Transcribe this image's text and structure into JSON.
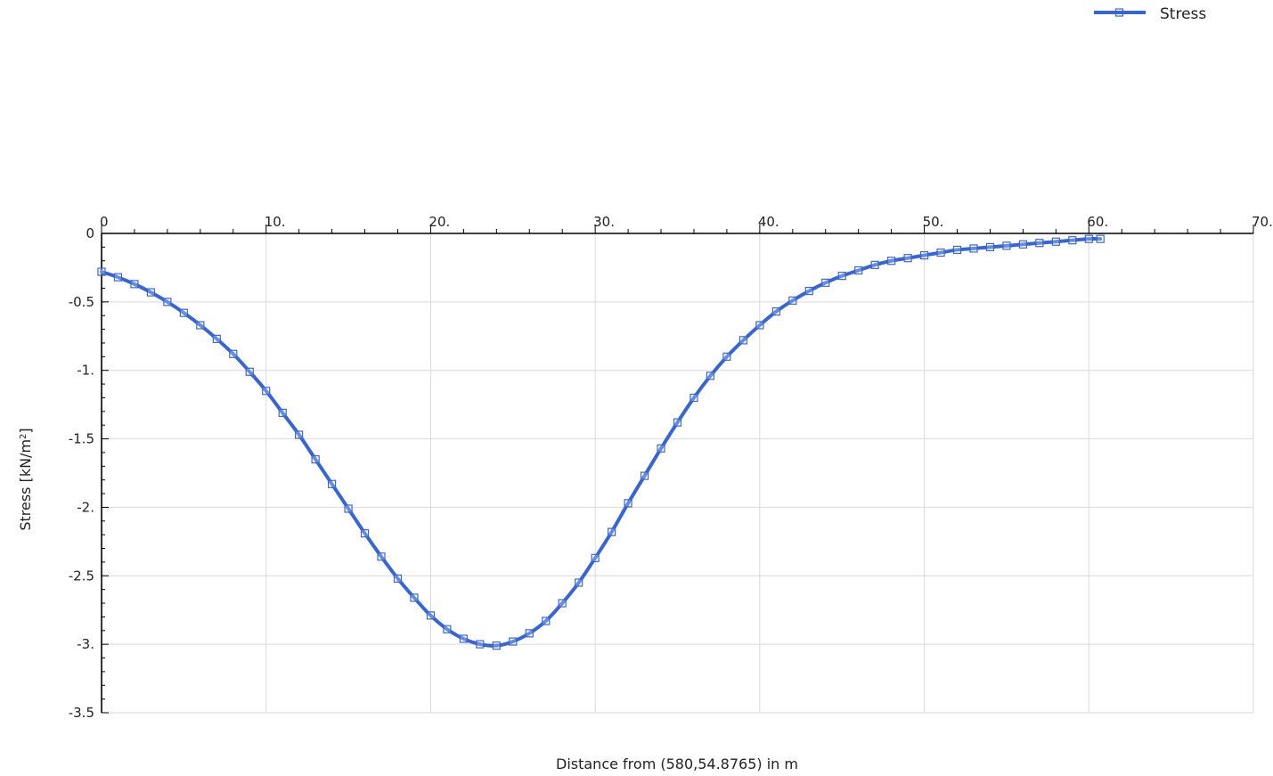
{
  "chart_data": {
    "type": "line",
    "xlabel": "Distance from (580,54.8765) in m",
    "ylabel_main": "Stress [kN/m",
    "ylabel_sup": "2",
    "ylabel_end": "]",
    "xlim": [
      0,
      70
    ],
    "ylim": [
      -3.5,
      0
    ],
    "x_ticks": [
      0,
      10,
      20,
      30,
      40,
      50,
      60,
      70
    ],
    "x_tick_labels": [
      "0",
      "10.",
      "20.",
      "30.",
      "40.",
      "50.",
      "60.",
      "70."
    ],
    "y_ticks": [
      0,
      -0.5,
      -1,
      -1.5,
      -2,
      -2.5,
      -3,
      -3.5
    ],
    "y_tick_labels": [
      "0",
      "-0.5",
      "-1.",
      "-1.5",
      "-2.",
      "-2.5",
      "-3.",
      "-3.5"
    ],
    "grid": true,
    "legend_position": "top-right",
    "series": [
      {
        "name": "Stress",
        "color": "#3a66cc",
        "marker": "square",
        "x": [
          0.0,
          1.0,
          2.0,
          3.0,
          4.0,
          5.0,
          6.0,
          7.0,
          8.0,
          9.0,
          10.0,
          11.0,
          12.0,
          13.0,
          14.0,
          15.0,
          16.0,
          17.0,
          18.0,
          19.0,
          20.0,
          21.0,
          22.0,
          23.0,
          24.0,
          25.0,
          26.0,
          27.0,
          28.0,
          29.0,
          30.0,
          31.0,
          32.0,
          33.0,
          34.0,
          35.0,
          36.0,
          37.0,
          38.0,
          39.0,
          40.0,
          41.0,
          42.0,
          43.0,
          44.0,
          45.0,
          46.0,
          47.0,
          48.0,
          49.0,
          50.0,
          51.0,
          52.0,
          53.0,
          54.0,
          55.0,
          56.0,
          57.0,
          58.0,
          59.0,
          60.0,
          60.7
        ],
        "y": [
          -0.28,
          -0.32,
          -0.37,
          -0.43,
          -0.5,
          -0.58,
          -0.67,
          -0.77,
          -0.88,
          -1.01,
          -1.15,
          -1.31,
          -1.47,
          -1.65,
          -1.83,
          -2.01,
          -2.19,
          -2.36,
          -2.52,
          -2.66,
          -2.79,
          -2.89,
          -2.96,
          -3.0,
          -3.01,
          -2.98,
          -2.92,
          -2.83,
          -2.7,
          -2.55,
          -2.37,
          -2.18,
          -1.97,
          -1.77,
          -1.57,
          -1.38,
          -1.2,
          -1.04,
          -0.9,
          -0.78,
          -0.67,
          -0.57,
          -0.49,
          -0.42,
          -0.36,
          -0.31,
          -0.27,
          -0.23,
          -0.2,
          -0.18,
          -0.16,
          -0.14,
          -0.12,
          -0.11,
          -0.1,
          -0.09,
          -0.08,
          -0.07,
          -0.06,
          -0.05,
          -0.04,
          -0.04
        ]
      }
    ]
  }
}
